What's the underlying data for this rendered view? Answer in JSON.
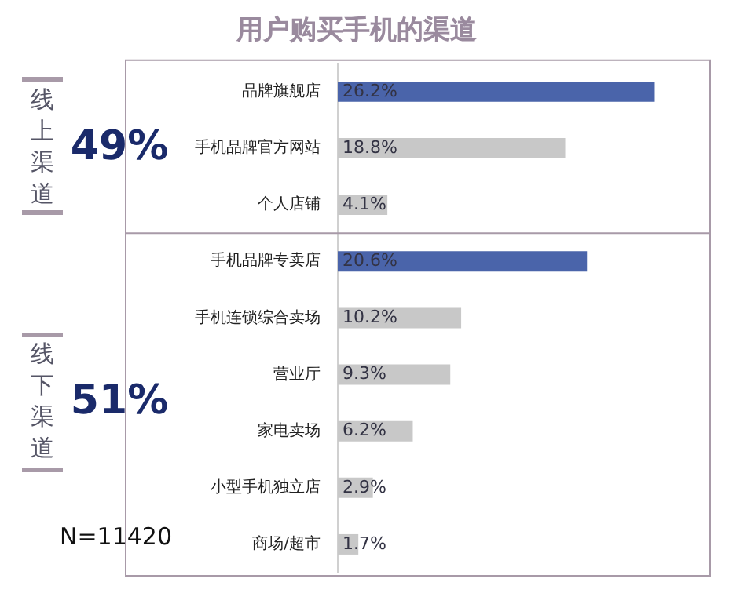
{
  "chart_data": {
    "type": "bar",
    "orientation": "horizontal",
    "title": "用户购买手机的渠道",
    "categories": [
      "品牌旗舰店",
      "手机品牌官方网站",
      "个人店铺",
      "手机品牌专卖店",
      "手机连锁综合卖场",
      "营业厅",
      "家电卖场",
      "小型手机独立店",
      "商场/超市"
    ],
    "values": [
      26.2,
      18.8,
      4.1,
      20.6,
      10.2,
      9.3,
      6.2,
      2.9,
      1.7
    ],
    "colors": [
      "#4a64aa",
      "#c8c8c8",
      "#c8c8c8",
      "#4a64aa",
      "#c8c8c8",
      "#c8c8c8",
      "#c8c8c8",
      "#c8c8c8",
      "#c8c8c8"
    ],
    "value_labels": [
      "26.2%",
      "18.8%",
      "4.1%",
      "20.6%",
      "10.2%",
      "9.3%",
      "6.2%",
      "2.9%",
      "1.7%"
    ],
    "tick_labels": "y",
    "grid": false,
    "legend": false,
    "annotations": [
      "线上渠道",
      "49%",
      "线下渠道",
      "51%",
      "N=11420"
    ]
  }
}
